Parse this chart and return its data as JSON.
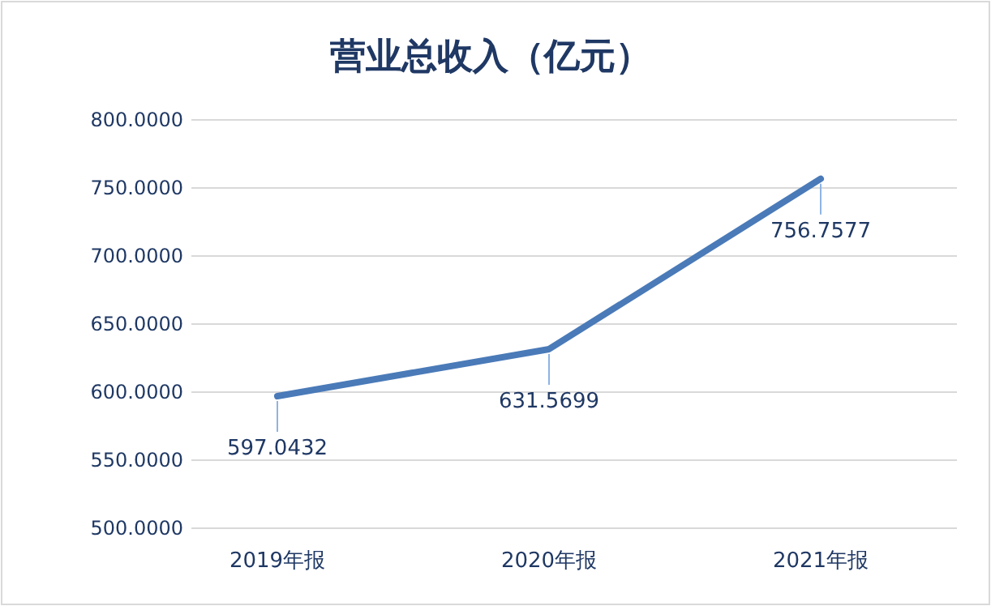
{
  "chart_data": {
    "type": "line",
    "title": "营业总收入（亿元）",
    "categories": [
      "2019年报",
      "2020年报",
      "2021年报"
    ],
    "series": [
      {
        "color": "#4a7ab8",
        "values": [
          597.0432,
          631.5699,
          756.7577
        ]
      }
    ],
    "ylim": [
      500,
      800
    ],
    "yticks": [
      {
        "value": 500,
        "label": "500.0000"
      },
      {
        "value": 550,
        "label": "550.0000"
      },
      {
        "value": 600,
        "label": "600.0000"
      },
      {
        "value": 650,
        "label": "650.0000"
      },
      {
        "value": 700,
        "label": "700.0000"
      },
      {
        "value": 750,
        "label": "750.0000"
      },
      {
        "value": 800,
        "label": "800.0000"
      }
    ],
    "grid": "y",
    "data_labels": true,
    "marker": "none",
    "line_style": "solid"
  }
}
